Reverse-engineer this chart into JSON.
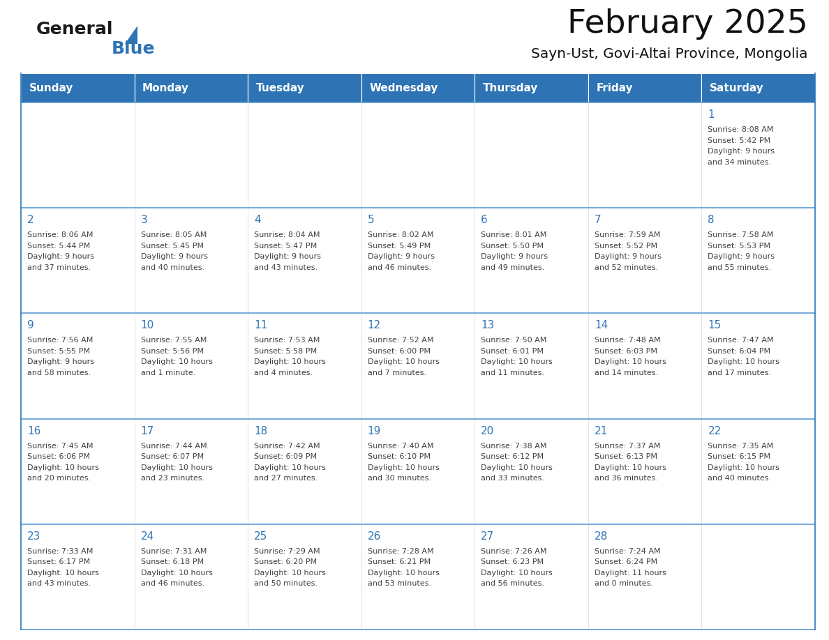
{
  "title": "February 2025",
  "subtitle": "Sayn-Ust, Govi-Altai Province, Mongolia",
  "header_bg": "#2E74B5",
  "header_text": "#FFFFFF",
  "border_color": "#2E74B5",
  "row_border_color": "#5B9BD5",
  "text_color": "#404040",
  "day_num_color": "#2E74B5",
  "days_of_week": [
    "Sunday",
    "Monday",
    "Tuesday",
    "Wednesday",
    "Thursday",
    "Friday",
    "Saturday"
  ],
  "calendar_data": [
    [
      null,
      null,
      null,
      null,
      null,
      null,
      {
        "day": "1",
        "sunrise": "8:08 AM",
        "sunset": "5:42 PM",
        "daylight": "9 hours",
        "daylight2": "and 34 minutes."
      }
    ],
    [
      {
        "day": "2",
        "sunrise": "8:06 AM",
        "sunset": "5:44 PM",
        "daylight": "9 hours",
        "daylight2": "and 37 minutes."
      },
      {
        "day": "3",
        "sunrise": "8:05 AM",
        "sunset": "5:45 PM",
        "daylight": "9 hours",
        "daylight2": "and 40 minutes."
      },
      {
        "day": "4",
        "sunrise": "8:04 AM",
        "sunset": "5:47 PM",
        "daylight": "9 hours",
        "daylight2": "and 43 minutes."
      },
      {
        "day": "5",
        "sunrise": "8:02 AM",
        "sunset": "5:49 PM",
        "daylight": "9 hours",
        "daylight2": "and 46 minutes."
      },
      {
        "day": "6",
        "sunrise": "8:01 AM",
        "sunset": "5:50 PM",
        "daylight": "9 hours",
        "daylight2": "and 49 minutes."
      },
      {
        "day": "7",
        "sunrise": "7:59 AM",
        "sunset": "5:52 PM",
        "daylight": "9 hours",
        "daylight2": "and 52 minutes."
      },
      {
        "day": "8",
        "sunrise": "7:58 AM",
        "sunset": "5:53 PM",
        "daylight": "9 hours",
        "daylight2": "and 55 minutes."
      }
    ],
    [
      {
        "day": "9",
        "sunrise": "7:56 AM",
        "sunset": "5:55 PM",
        "daylight": "9 hours",
        "daylight2": "and 58 minutes."
      },
      {
        "day": "10",
        "sunrise": "7:55 AM",
        "sunset": "5:56 PM",
        "daylight": "10 hours",
        "daylight2": "and 1 minute."
      },
      {
        "day": "11",
        "sunrise": "7:53 AM",
        "sunset": "5:58 PM",
        "daylight": "10 hours",
        "daylight2": "and 4 minutes."
      },
      {
        "day": "12",
        "sunrise": "7:52 AM",
        "sunset": "6:00 PM",
        "daylight": "10 hours",
        "daylight2": "and 7 minutes."
      },
      {
        "day": "13",
        "sunrise": "7:50 AM",
        "sunset": "6:01 PM",
        "daylight": "10 hours",
        "daylight2": "and 11 minutes."
      },
      {
        "day": "14",
        "sunrise": "7:48 AM",
        "sunset": "6:03 PM",
        "daylight": "10 hours",
        "daylight2": "and 14 minutes."
      },
      {
        "day": "15",
        "sunrise": "7:47 AM",
        "sunset": "6:04 PM",
        "daylight": "10 hours",
        "daylight2": "and 17 minutes."
      }
    ],
    [
      {
        "day": "16",
        "sunrise": "7:45 AM",
        "sunset": "6:06 PM",
        "daylight": "10 hours",
        "daylight2": "and 20 minutes."
      },
      {
        "day": "17",
        "sunrise": "7:44 AM",
        "sunset": "6:07 PM",
        "daylight": "10 hours",
        "daylight2": "and 23 minutes."
      },
      {
        "day": "18",
        "sunrise": "7:42 AM",
        "sunset": "6:09 PM",
        "daylight": "10 hours",
        "daylight2": "and 27 minutes."
      },
      {
        "day": "19",
        "sunrise": "7:40 AM",
        "sunset": "6:10 PM",
        "daylight": "10 hours",
        "daylight2": "and 30 minutes."
      },
      {
        "day": "20",
        "sunrise": "7:38 AM",
        "sunset": "6:12 PM",
        "daylight": "10 hours",
        "daylight2": "and 33 minutes."
      },
      {
        "day": "21",
        "sunrise": "7:37 AM",
        "sunset": "6:13 PM",
        "daylight": "10 hours",
        "daylight2": "and 36 minutes."
      },
      {
        "day": "22",
        "sunrise": "7:35 AM",
        "sunset": "6:15 PM",
        "daylight": "10 hours",
        "daylight2": "and 40 minutes."
      }
    ],
    [
      {
        "day": "23",
        "sunrise": "7:33 AM",
        "sunset": "6:17 PM",
        "daylight": "10 hours",
        "daylight2": "and 43 minutes."
      },
      {
        "day": "24",
        "sunrise": "7:31 AM",
        "sunset": "6:18 PM",
        "daylight": "10 hours",
        "daylight2": "and 46 minutes."
      },
      {
        "day": "25",
        "sunrise": "7:29 AM",
        "sunset": "6:20 PM",
        "daylight": "10 hours",
        "daylight2": "and 50 minutes."
      },
      {
        "day": "26",
        "sunrise": "7:28 AM",
        "sunset": "6:21 PM",
        "daylight": "10 hours",
        "daylight2": "and 53 minutes."
      },
      {
        "day": "27",
        "sunrise": "7:26 AM",
        "sunset": "6:23 PM",
        "daylight": "10 hours",
        "daylight2": "and 56 minutes."
      },
      {
        "day": "28",
        "sunrise": "7:24 AM",
        "sunset": "6:24 PM",
        "daylight": "11 hours",
        "daylight2": "and 0 minutes."
      },
      null
    ]
  ],
  "logo_color_general": "#1a1a1a",
  "logo_color_blue": "#2E74B5",
  "fig_width": 11.88,
  "fig_height": 9.18
}
